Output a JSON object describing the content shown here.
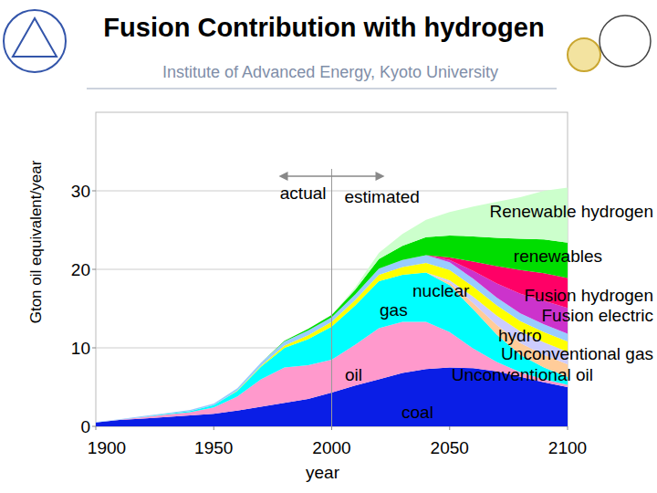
{
  "chart_data": {
    "type": "area",
    "stacked": true,
    "title": "Fusion Contribution with hydrogen",
    "subtitle": "Institute of Advanced Energy, Kyoto University",
    "y_label": "Gton oil equivalent/year",
    "x_label": "year",
    "annotations": [
      "actual",
      "estimated"
    ],
    "divider_x": 2000,
    "grid": true,
    "x": [
      1900,
      1910,
      1920,
      1930,
      1940,
      1950,
      1960,
      1970,
      1980,
      1990,
      2000,
      2010,
      2020,
      2030,
      2040,
      2050,
      2060,
      2070,
      2080,
      2090,
      2100
    ],
    "xlim": [
      1900,
      2100
    ],
    "xticks": [
      1900,
      1950,
      2000,
      2050,
      2100
    ],
    "ylim": [
      0,
      40
    ],
    "yticks": [
      0,
      10,
      20,
      30
    ],
    "series": [
      {
        "name": "coal",
        "color": "#0a1ee6",
        "values": [
          0.5,
          0.8,
          1.0,
          1.2,
          1.4,
          1.6,
          2.0,
          2.5,
          3.0,
          3.5,
          4.3,
          5.2,
          6.0,
          6.8,
          7.3,
          7.5,
          7.4,
          7.0,
          6.3,
          5.6,
          5.0
        ]
      },
      {
        "name": "oil",
        "color": "#ff99cc",
        "values": [
          0,
          0.05,
          0.15,
          0.3,
          0.4,
          0.8,
          1.8,
          3.5,
          4.5,
          4.3,
          4.2,
          5.2,
          6.5,
          6.5,
          6.0,
          4.5,
          2.5,
          1.2,
          0.6,
          0.4,
          0.3
        ]
      },
      {
        "name": "gas",
        "color": "#00ffff",
        "values": [
          0,
          0,
          0.05,
          0.1,
          0.15,
          0.3,
          0.7,
          1.6,
          2.5,
          3.3,
          4.2,
          5.0,
          6.0,
          6.0,
          6.3,
          6.0,
          5.0,
          3.5,
          2.2,
          1.5,
          1.0
        ]
      },
      {
        "name": "Unconventional oil",
        "color": "#ffcc99",
        "values": [
          0,
          0,
          0,
          0,
          0,
          0,
          0,
          0,
          0,
          0,
          0,
          0,
          0,
          0,
          0,
          0.3,
          0.8,
          1.2,
          1.5,
          1.6,
          1.6
        ]
      },
      {
        "name": "Unconventional gas",
        "color": "#ccccff",
        "values": [
          0,
          0,
          0,
          0,
          0,
          0,
          0,
          0,
          0,
          0,
          0,
          0,
          0,
          0,
          0,
          0.3,
          0.8,
          1.2,
          1.5,
          1.6,
          1.6
        ]
      },
      {
        "name": "nuclear",
        "color": "#ffff00",
        "values": [
          0,
          0,
          0,
          0,
          0,
          0,
          0.05,
          0.1,
          0.3,
          0.5,
          0.6,
          0.7,
          0.8,
          1.0,
          1.2,
          1.3,
          1.3,
          1.3,
          1.3,
          1.3,
          1.3
        ]
      },
      {
        "name": "hydro",
        "color": "#99ccff",
        "values": [
          0.05,
          0.05,
          0.1,
          0.1,
          0.15,
          0.2,
          0.3,
          0.4,
          0.5,
          0.6,
          0.6,
          0.7,
          0.8,
          0.9,
          1.0,
          1.0,
          1.0,
          1.0,
          1.0,
          1.0,
          1.0
        ]
      },
      {
        "name": "Fusion electric",
        "color": "#cc33cc",
        "values": [
          0,
          0,
          0,
          0,
          0,
          0,
          0,
          0,
          0,
          0,
          0,
          0,
          0,
          0,
          0,
          0.3,
          1.0,
          1.8,
          2.5,
          3.0,
          3.3
        ]
      },
      {
        "name": "Fusion hydrogen",
        "color": "#ff0066",
        "values": [
          0,
          0,
          0,
          0,
          0,
          0,
          0,
          0,
          0,
          0,
          0,
          0,
          0,
          0,
          0,
          0.3,
          1.2,
          2.2,
          3.0,
          3.5,
          3.8
        ]
      },
      {
        "name": "renewables",
        "color": "#00dd00",
        "values": [
          0,
          0,
          0,
          0,
          0,
          0,
          0,
          0,
          0.1,
          0.2,
          0.3,
          0.6,
          1.2,
          1.8,
          2.3,
          2.8,
          3.2,
          3.6,
          4.0,
          4.3,
          4.5
        ]
      },
      {
        "name": "Renewable hydrogen",
        "color": "#ccffcc",
        "values": [
          0,
          0,
          0,
          0,
          0,
          0,
          0,
          0,
          0,
          0,
          0,
          0.3,
          0.8,
          1.5,
          2.2,
          3.0,
          3.8,
          4.6,
          5.3,
          6.2,
          7.0
        ]
      }
    ]
  }
}
